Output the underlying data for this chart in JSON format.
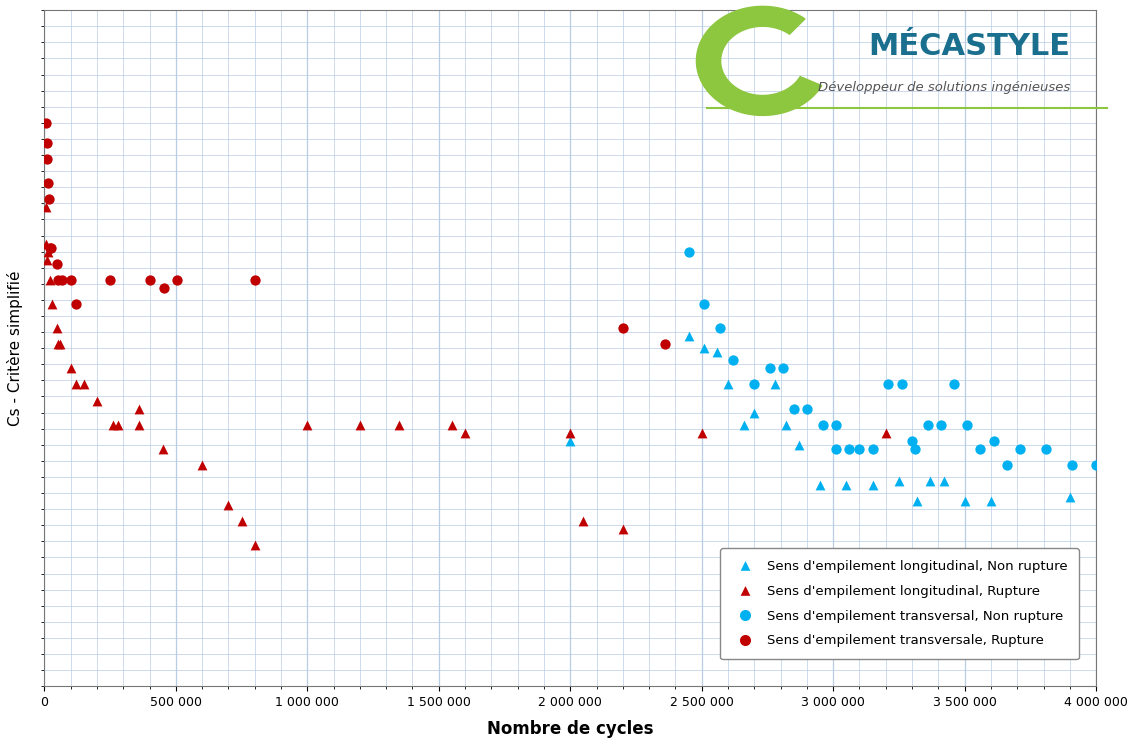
{
  "xlabel": "Nombre de cycles",
  "ylabel": "Cs - Critère simplifié",
  "xlim": [
    0,
    4000000
  ],
  "ylim_low": 0.18,
  "ylim_high": 1.02,
  "xtick_labels": [
    "0",
    "500 000",
    "1 000 000",
    "1 500 000",
    "2 000 000",
    "2 500 000",
    "3 000 000",
    "3 500 000",
    "4 000 000"
  ],
  "xtick_vals": [
    0,
    500000,
    1000000,
    1500000,
    2000000,
    2500000,
    3000000,
    3500000,
    4000000
  ],
  "background_color": "#ffffff",
  "grid_color": "#b8cce4",
  "cyan_color": "#00b0f0",
  "red_color": "#c00000",
  "green_color": "#8dc63f",
  "navy_color": "#1a6e8e",
  "legend_labels": [
    "Sens d'empilement longitudinal, Non rupture",
    "Sens d'empilement longitudinal, Rupture",
    "Sens d'empilement transversal, Non rupture",
    "Sens d'empilement transversale, Rupture"
  ],
  "long_nr_x": [
    2000000,
    2450000,
    2510000,
    2560000,
    2600000,
    2660000,
    2700000,
    2780000,
    2820000,
    2870000,
    2950000,
    3050000,
    3150000,
    3250000,
    3320000,
    3370000,
    3420000,
    3500000,
    3600000,
    3900000
  ],
  "long_nr_y": [
    0.485,
    0.615,
    0.6,
    0.595,
    0.555,
    0.505,
    0.52,
    0.555,
    0.505,
    0.48,
    0.43,
    0.43,
    0.43,
    0.435,
    0.41,
    0.435,
    0.435,
    0.41,
    0.41,
    0.415
  ],
  "long_r_x": [
    5000,
    8000,
    10000,
    14000,
    20000,
    30000,
    48000,
    52000,
    60000,
    100000,
    120000,
    150000,
    200000,
    260000,
    280000,
    360000,
    360000,
    450000,
    600000,
    700000,
    750000,
    800000,
    1000000,
    1200000,
    1350000,
    1550000,
    1600000,
    2000000,
    2050000,
    2200000,
    2500000,
    3200000
  ],
  "long_r_y": [
    0.775,
    0.73,
    0.71,
    0.72,
    0.685,
    0.655,
    0.625,
    0.605,
    0.605,
    0.575,
    0.555,
    0.555,
    0.535,
    0.505,
    0.505,
    0.525,
    0.505,
    0.475,
    0.455,
    0.405,
    0.385,
    0.355,
    0.505,
    0.505,
    0.505,
    0.505,
    0.495,
    0.495,
    0.385,
    0.375,
    0.495,
    0.495
  ],
  "trans_nr_x": [
    2450000,
    2510000,
    2570000,
    2620000,
    2700000,
    2760000,
    2810000,
    2850000,
    2900000,
    2960000,
    3010000,
    3010000,
    3060000,
    3100000,
    3150000,
    3210000,
    3260000,
    3300000,
    3310000,
    3360000,
    3410000,
    3460000,
    3510000,
    3560000,
    3610000,
    3660000,
    3710000,
    3810000,
    3910000,
    4000000
  ],
  "trans_nr_y": [
    0.72,
    0.655,
    0.625,
    0.585,
    0.555,
    0.575,
    0.575,
    0.525,
    0.525,
    0.505,
    0.505,
    0.475,
    0.475,
    0.475,
    0.475,
    0.555,
    0.555,
    0.485,
    0.475,
    0.505,
    0.505,
    0.555,
    0.505,
    0.475,
    0.485,
    0.455,
    0.475,
    0.475,
    0.455,
    0.455
  ],
  "trans_r_x": [
    5000,
    9000,
    9500,
    14000,
    19000,
    20000,
    25000,
    48000,
    53000,
    68000,
    100000,
    120000,
    250000,
    400000,
    455000,
    505000,
    800000,
    2200000,
    2360000
  ],
  "trans_r_y": [
    0.88,
    0.855,
    0.835,
    0.805,
    0.785,
    0.725,
    0.725,
    0.705,
    0.685,
    0.685,
    0.685,
    0.655,
    0.685,
    0.685,
    0.675,
    0.685,
    0.685,
    0.625,
    0.605
  ]
}
